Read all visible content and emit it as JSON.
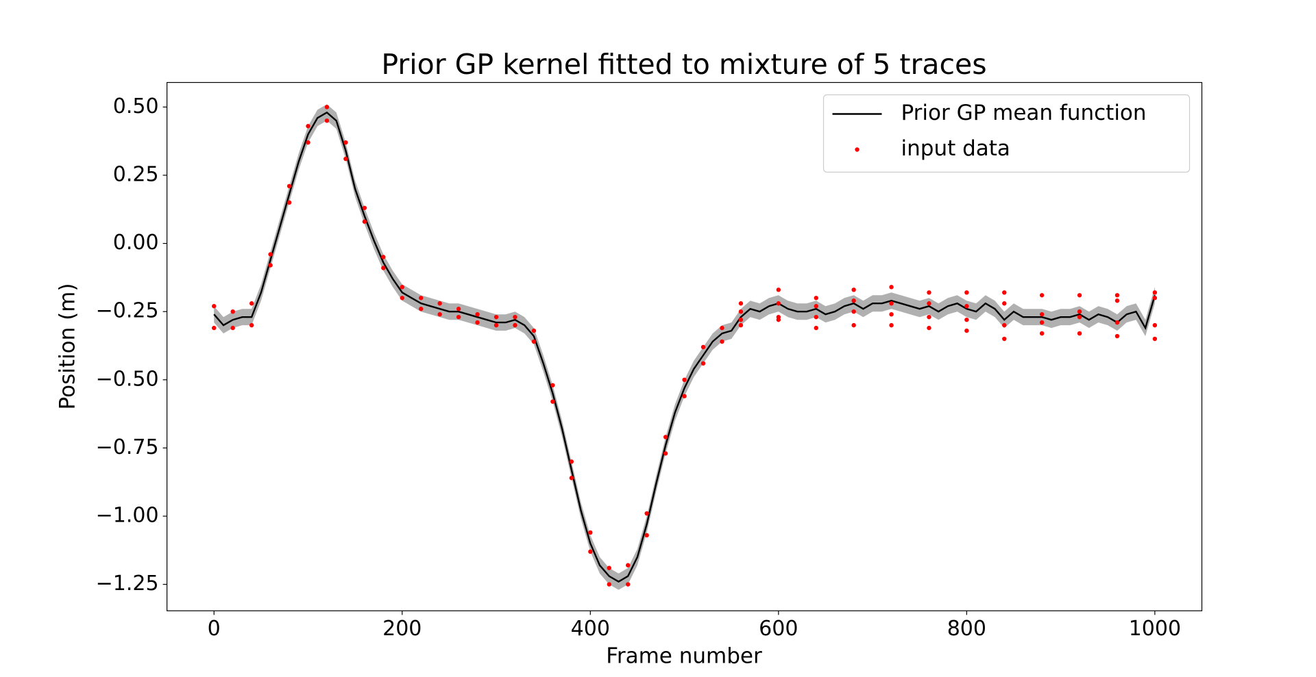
{
  "chart_data": {
    "type": "line",
    "title": "Prior GP kernel fitted to mixture of 5 traces",
    "xlabel": "Frame number",
    "ylabel": "Position (m)",
    "xlim": [
      -50,
      1050
    ],
    "ylim": [
      -1.347,
      0.59
    ],
    "xticks": [
      0,
      200,
      400,
      600,
      800,
      1000
    ],
    "yticks": [
      {
        "value": 0.5,
        "label": "0.50"
      },
      {
        "value": 0.25,
        "label": "0.25"
      },
      {
        "value": 0,
        "label": "0.00"
      },
      {
        "value": -0.25,
        "label": "−0.25"
      },
      {
        "value": -0.5,
        "label": "−0.50"
      },
      {
        "value": -0.75,
        "label": "−0.75"
      },
      {
        "value": -1,
        "label": "−1.00"
      },
      {
        "value": -1.25,
        "label": "−1.25"
      }
    ],
    "grid": false,
    "legend": "upper right",
    "series": [
      {
        "name": "Prior GP mean function",
        "type": "line",
        "color": "#000000",
        "band_color": "#b0b0b0",
        "error": 0.03,
        "x": [
          0,
          10,
          20,
          30,
          40,
          50,
          60,
          70,
          80,
          90,
          100,
          110,
          120,
          130,
          140,
          150,
          160,
          170,
          180,
          190,
          200,
          210,
          220,
          230,
          240,
          250,
          260,
          270,
          280,
          290,
          300,
          310,
          320,
          330,
          340,
          350,
          360,
          370,
          380,
          390,
          400,
          410,
          420,
          430,
          440,
          450,
          460,
          470,
          480,
          490,
          500,
          510,
          520,
          530,
          540,
          550,
          560,
          570,
          580,
          590,
          600,
          610,
          620,
          630,
          640,
          650,
          660,
          670,
          680,
          690,
          700,
          710,
          720,
          730,
          740,
          750,
          760,
          770,
          780,
          790,
          800,
          810,
          820,
          830,
          840,
          850,
          860,
          870,
          880,
          890,
          900,
          910,
          920,
          930,
          940,
          950,
          960,
          970,
          980,
          990,
          1000
        ],
        "values": [
          -0.26,
          -0.3,
          -0.28,
          -0.27,
          -0.27,
          -0.18,
          -0.06,
          0.06,
          0.18,
          0.3,
          0.4,
          0.46,
          0.48,
          0.45,
          0.34,
          0.2,
          0.1,
          0.01,
          -0.07,
          -0.13,
          -0.18,
          -0.2,
          -0.22,
          -0.23,
          -0.24,
          -0.25,
          -0.25,
          -0.26,
          -0.27,
          -0.28,
          -0.29,
          -0.29,
          -0.28,
          -0.3,
          -0.34,
          -0.44,
          -0.55,
          -0.68,
          -0.83,
          -0.98,
          -1.1,
          -1.18,
          -1.22,
          -1.24,
          -1.22,
          -1.15,
          -1.03,
          -0.88,
          -0.74,
          -0.62,
          -0.53,
          -0.46,
          -0.41,
          -0.36,
          -0.33,
          -0.32,
          -0.27,
          -0.24,
          -0.25,
          -0.23,
          -0.22,
          -0.24,
          -0.25,
          -0.25,
          -0.24,
          -0.26,
          -0.25,
          -0.23,
          -0.22,
          -0.24,
          -0.22,
          -0.22,
          -0.21,
          -0.22,
          -0.23,
          -0.24,
          -0.23,
          -0.25,
          -0.23,
          -0.22,
          -0.24,
          -0.25,
          -0.22,
          -0.24,
          -0.28,
          -0.25,
          -0.27,
          -0.27,
          -0.27,
          -0.28,
          -0.27,
          -0.27,
          -0.26,
          -0.28,
          -0.26,
          -0.27,
          -0.29,
          -0.26,
          -0.25,
          -0.31,
          -0.19
        ]
      },
      {
        "name": "input data",
        "type": "scatter",
        "color": "#ff0000",
        "x": [
          0,
          0,
          20,
          20,
          40,
          40,
          60,
          60,
          80,
          80,
          100,
          100,
          120,
          120,
          140,
          140,
          160,
          160,
          180,
          180,
          200,
          200,
          220,
          220,
          240,
          240,
          260,
          260,
          280,
          280,
          300,
          300,
          320,
          320,
          340,
          340,
          360,
          360,
          380,
          380,
          400,
          400,
          420,
          420,
          440,
          440,
          460,
          460,
          480,
          480,
          500,
          500,
          520,
          520,
          540,
          540,
          560,
          560,
          560,
          560,
          600,
          600,
          600,
          600,
          640,
          640,
          640,
          640,
          680,
          680,
          680,
          680,
          720,
          720,
          720,
          720,
          760,
          760,
          760,
          760,
          800,
          800,
          800,
          800,
          840,
          840,
          840,
          840,
          880,
          880,
          880,
          880,
          920,
          920,
          920,
          920,
          960,
          960,
          960,
          960,
          1000,
          1000,
          1000,
          1000
        ],
        "values": [
          -0.23,
          -0.31,
          -0.25,
          -0.31,
          -0.22,
          -0.3,
          -0.04,
          -0.08,
          0.21,
          0.15,
          0.43,
          0.37,
          0.5,
          0.45,
          0.37,
          0.31,
          0.13,
          0.08,
          -0.05,
          -0.09,
          -0.16,
          -0.2,
          -0.2,
          -0.24,
          -0.22,
          -0.26,
          -0.24,
          -0.27,
          -0.26,
          -0.29,
          -0.27,
          -0.3,
          -0.27,
          -0.3,
          -0.32,
          -0.36,
          -0.52,
          -0.58,
          -0.8,
          -0.86,
          -1.06,
          -1.13,
          -1.19,
          -1.25,
          -1.18,
          -1.25,
          -0.99,
          -1.07,
          -0.71,
          -0.77,
          -0.5,
          -0.56,
          -0.38,
          -0.44,
          -0.31,
          -0.36,
          -0.22,
          -0.25,
          -0.28,
          -0.3,
          -0.17,
          -0.22,
          -0.27,
          -0.28,
          -0.2,
          -0.23,
          -0.27,
          -0.31,
          -0.17,
          -0.21,
          -0.25,
          -0.3,
          -0.16,
          -0.22,
          -0.26,
          -0.3,
          -0.18,
          -0.22,
          -0.27,
          -0.31,
          -0.18,
          -0.23,
          -0.28,
          -0.32,
          -0.18,
          -0.22,
          -0.3,
          -0.35,
          -0.19,
          -0.26,
          -0.29,
          -0.33,
          -0.19,
          -0.25,
          -0.27,
          -0.33,
          -0.19,
          -0.21,
          -0.29,
          -0.34,
          -0.18,
          -0.2,
          -0.3,
          -0.35
        ]
      }
    ]
  }
}
